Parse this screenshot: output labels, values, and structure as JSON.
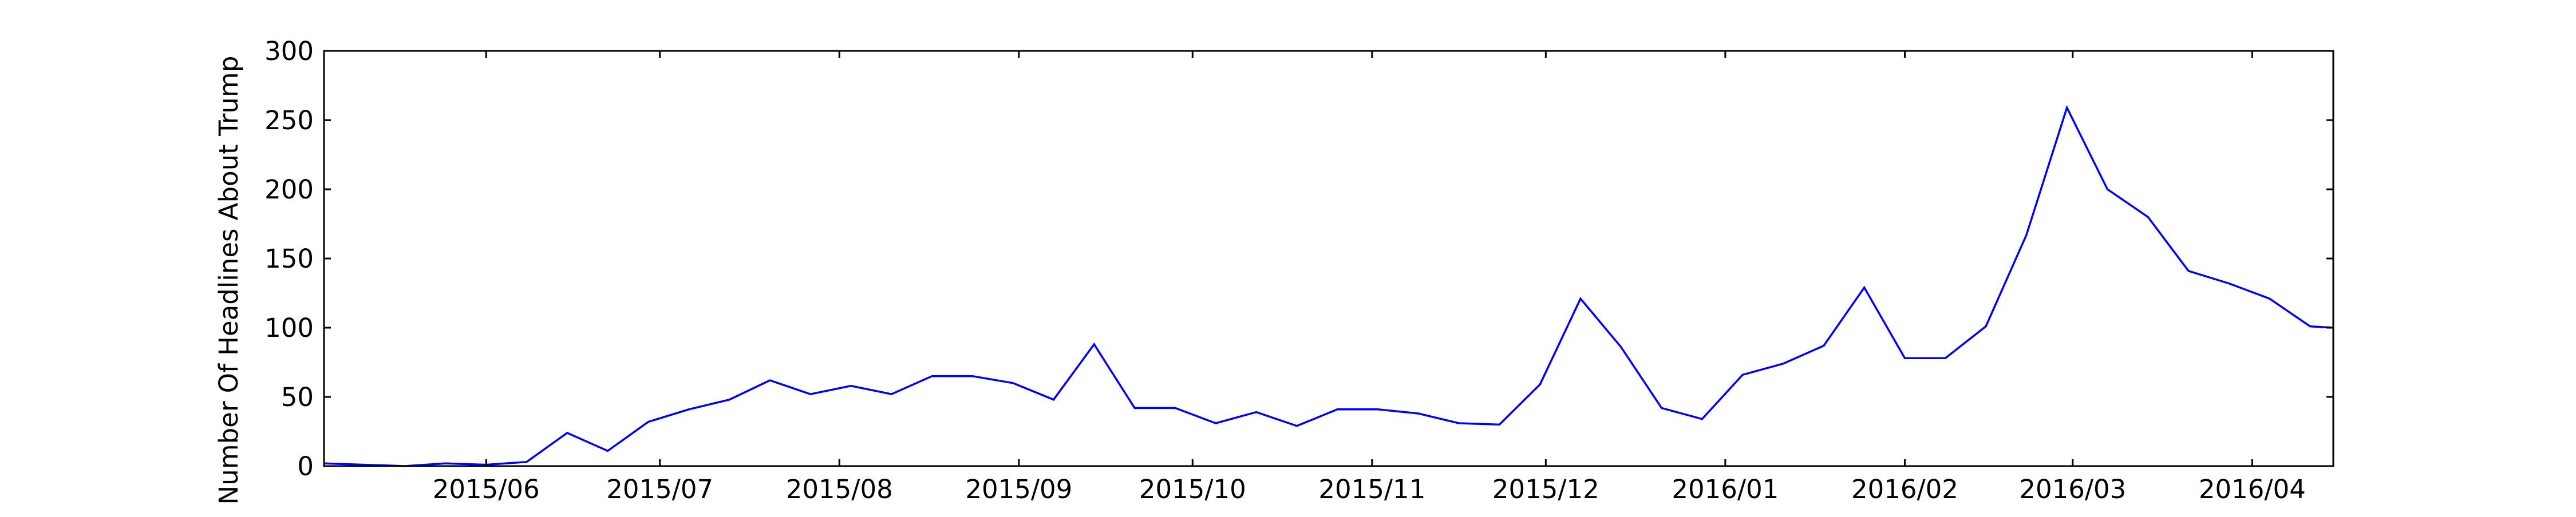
{
  "chart_data": {
    "type": "line",
    "title": "",
    "xlabel": "",
    "ylabel": "Number Of Headlines About Trump",
    "x_tick_labels": [
      "2015/06",
      "2015/07",
      "2015/08",
      "2015/09",
      "2015/10",
      "2015/11",
      "2015/12",
      "2016/01",
      "2016/02",
      "2016/03",
      "2016/04"
    ],
    "y_ticks": [
      0,
      50,
      100,
      150,
      200,
      250,
      300
    ],
    "ylim": [
      0,
      300
    ],
    "xlim": [
      "2015-05-04",
      "2016-04-15"
    ],
    "grid": false,
    "colors": {
      "line": "#0000ff",
      "axes": "#000000",
      "background": "#ffffff"
    },
    "series": [
      {
        "x": [
          "2015-05-04",
          "2015-05-11",
          "2015-05-18",
          "2015-05-25",
          "2015-06-01",
          "2015-06-08",
          "2015-06-15",
          "2015-06-22",
          "2015-06-29",
          "2015-07-06",
          "2015-07-13",
          "2015-07-20",
          "2015-07-27",
          "2015-08-03",
          "2015-08-10",
          "2015-08-17",
          "2015-08-24",
          "2015-08-31",
          "2015-09-07",
          "2015-09-14",
          "2015-09-21",
          "2015-09-28",
          "2015-10-05",
          "2015-10-12",
          "2015-10-19",
          "2015-10-26",
          "2015-11-02",
          "2015-11-09",
          "2015-11-16",
          "2015-11-23",
          "2015-11-30",
          "2015-12-07",
          "2015-12-14",
          "2015-12-21",
          "2015-12-28",
          "2016-01-04",
          "2016-01-11",
          "2016-01-18",
          "2016-01-25",
          "2016-02-01",
          "2016-02-08",
          "2016-02-15",
          "2016-02-22",
          "2016-02-29",
          "2016-03-07",
          "2016-03-14",
          "2016-03-21",
          "2016-03-28",
          "2016-04-04",
          "2016-04-11",
          "2016-04-15"
        ],
        "values": [
          2,
          1,
          0,
          2,
          1,
          3,
          24,
          11,
          32,
          41,
          48,
          62,
          52,
          58,
          52,
          65,
          65,
          60,
          48,
          88,
          42,
          42,
          31,
          39,
          29,
          41,
          41,
          38,
          31,
          30,
          59,
          121,
          86,
          42,
          34,
          66,
          74,
          87,
          129,
          78,
          78,
          101,
          167,
          259,
          200,
          180,
          141,
          132,
          121,
          101,
          100
        ]
      }
    ]
  }
}
